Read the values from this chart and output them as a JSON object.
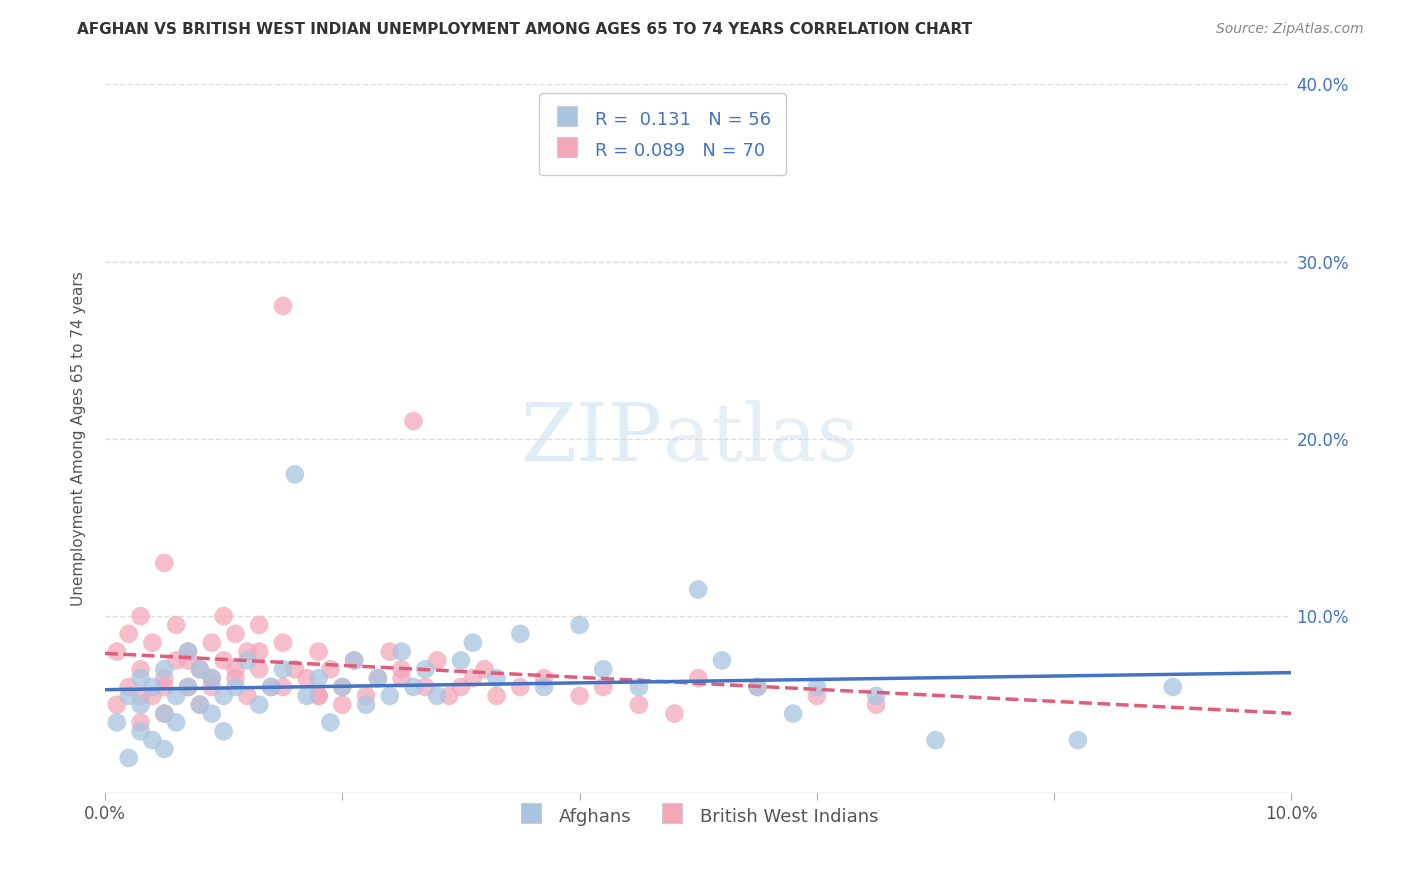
{
  "title": "AFGHAN VS BRITISH WEST INDIAN UNEMPLOYMENT AMONG AGES 65 TO 74 YEARS CORRELATION CHART",
  "source": "Source: ZipAtlas.com",
  "ylabel": "Unemployment Among Ages 65 to 74 years",
  "xlim": [
    0.0,
    0.1
  ],
  "ylim": [
    0.0,
    0.4
  ],
  "afghan_color": "#a8c4e0",
  "bwi_color": "#f4a7b9",
  "afghan_line_color": "#4472c4",
  "bwi_line_color": "#e05c7a",
  "afghan_R": 0.131,
  "afghan_N": 56,
  "bwi_R": 0.089,
  "bwi_N": 70,
  "watermark_zip": "ZIP",
  "watermark_atlas": "atlas",
  "background_color": "#ffffff",
  "grid_color": "#dddddd",
  "legend_label_afghan": "Afghans",
  "legend_label_bwi": "British West Indians",
  "afghan_x": [
    0.001,
    0.002,
    0.002,
    0.003,
    0.003,
    0.003,
    0.004,
    0.004,
    0.005,
    0.005,
    0.005,
    0.006,
    0.006,
    0.007,
    0.007,
    0.008,
    0.008,
    0.009,
    0.009,
    0.01,
    0.01,
    0.011,
    0.012,
    0.013,
    0.014,
    0.015,
    0.016,
    0.017,
    0.018,
    0.019,
    0.02,
    0.021,
    0.022,
    0.023,
    0.024,
    0.025,
    0.026,
    0.027,
    0.028,
    0.03,
    0.031,
    0.033,
    0.035,
    0.037,
    0.04,
    0.042,
    0.045,
    0.05,
    0.052,
    0.055,
    0.058,
    0.06,
    0.065,
    0.07,
    0.082,
    0.09
  ],
  "afghan_y": [
    0.04,
    0.02,
    0.055,
    0.035,
    0.05,
    0.065,
    0.03,
    0.06,
    0.045,
    0.025,
    0.07,
    0.055,
    0.04,
    0.06,
    0.08,
    0.05,
    0.07,
    0.045,
    0.065,
    0.055,
    0.035,
    0.06,
    0.075,
    0.05,
    0.06,
    0.07,
    0.18,
    0.055,
    0.065,
    0.04,
    0.06,
    0.075,
    0.05,
    0.065,
    0.055,
    0.08,
    0.06,
    0.07,
    0.055,
    0.075,
    0.085,
    0.065,
    0.09,
    0.06,
    0.095,
    0.07,
    0.06,
    0.115,
    0.075,
    0.06,
    0.045,
    0.06,
    0.055,
    0.03,
    0.03,
    0.06
  ],
  "bwi_x": [
    0.001,
    0.001,
    0.002,
    0.002,
    0.003,
    0.003,
    0.003,
    0.004,
    0.004,
    0.005,
    0.005,
    0.005,
    0.006,
    0.006,
    0.007,
    0.007,
    0.008,
    0.008,
    0.009,
    0.009,
    0.01,
    0.01,
    0.011,
    0.011,
    0.012,
    0.012,
    0.013,
    0.013,
    0.014,
    0.015,
    0.015,
    0.016,
    0.017,
    0.018,
    0.018,
    0.019,
    0.02,
    0.021,
    0.022,
    0.023,
    0.024,
    0.025,
    0.026,
    0.027,
    0.028,
    0.029,
    0.03,
    0.031,
    0.032,
    0.033,
    0.035,
    0.037,
    0.04,
    0.042,
    0.045,
    0.048,
    0.05,
    0.055,
    0.06,
    0.065,
    0.003,
    0.005,
    0.007,
    0.009,
    0.011,
    0.013,
    0.015,
    0.018,
    0.02,
    0.025
  ],
  "bwi_y": [
    0.05,
    0.08,
    0.06,
    0.09,
    0.04,
    0.07,
    0.1,
    0.055,
    0.085,
    0.065,
    0.13,
    0.045,
    0.075,
    0.095,
    0.06,
    0.08,
    0.05,
    0.07,
    0.085,
    0.06,
    0.075,
    0.1,
    0.065,
    0.09,
    0.055,
    0.08,
    0.07,
    0.095,
    0.06,
    0.085,
    0.275,
    0.07,
    0.065,
    0.08,
    0.055,
    0.07,
    0.06,
    0.075,
    0.055,
    0.065,
    0.08,
    0.07,
    0.21,
    0.06,
    0.075,
    0.055,
    0.06,
    0.065,
    0.07,
    0.055,
    0.06,
    0.065,
    0.055,
    0.06,
    0.05,
    0.045,
    0.065,
    0.06,
    0.055,
    0.05,
    0.055,
    0.06,
    0.075,
    0.065,
    0.07,
    0.08,
    0.06,
    0.055,
    0.05,
    0.065
  ]
}
